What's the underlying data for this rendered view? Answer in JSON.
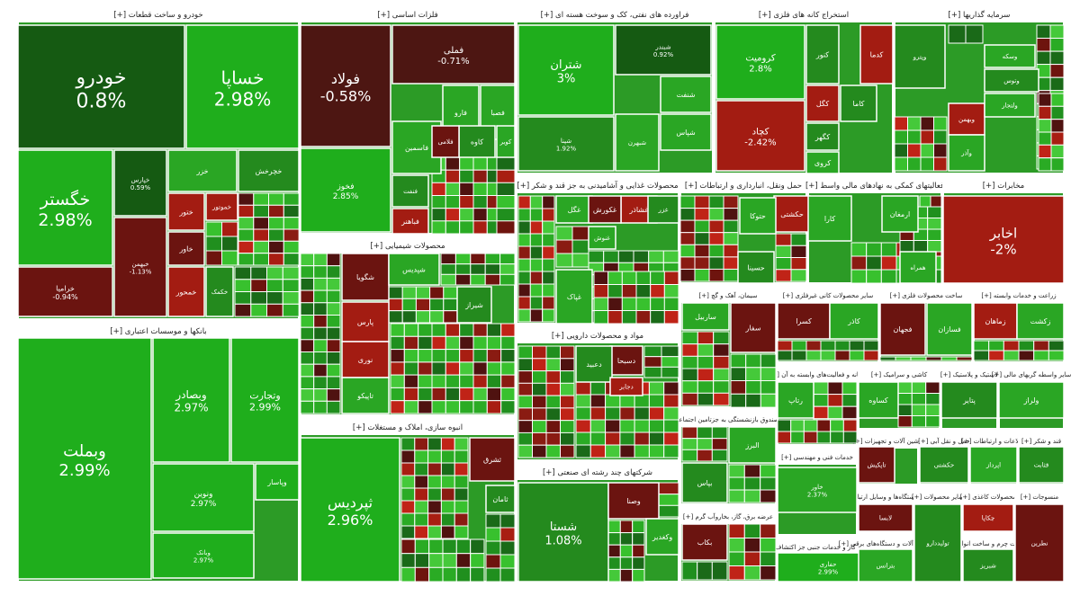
{
  "chart_data": {
    "type": "heatmap",
    "sectors": [
      {
        "name": "خودرو و ساخت قطعات [+]",
        "stocks": [
          {
            "name": "خودرو",
            "change": 0.8
          },
          {
            "name": "خساپا",
            "change": 2.98
          },
          {
            "name": "خگستر",
            "change": 2.98
          },
          {
            "name": "خرامیا",
            "change": -0.94
          },
          {
            "name": "خپارس",
            "change": 0.59
          },
          {
            "name": "خبهمن",
            "change": -1.13
          },
          {
            "name": "خمحور",
            "change": -1.5
          },
          {
            "name": "خاور",
            "change": -1.2
          },
          {
            "name": "ختور",
            "change": -2.0
          },
          {
            "name": "خموتور",
            "change": -1.5
          },
          {
            "name": "خکمک",
            "change": 1.4
          },
          {
            "name": "خزر",
            "change": 2.1
          },
          {
            "name": "خچرخش",
            "change": 1.9
          }
        ]
      },
      {
        "name": "فلزات اساسی [+]",
        "stocks": [
          {
            "name": "فولاد",
            "change": -0.58
          },
          {
            "name": "فملی",
            "change": -0.71
          },
          {
            "name": "فخوز",
            "change": 2.85
          },
          {
            "name": "فاسمين",
            "change": 2.3
          },
          {
            "name": "فارو",
            "change": 2.5
          },
          {
            "name": "فصبا",
            "change": 2.1
          },
          {
            "name": "کاوه",
            "change": 1.8
          },
          {
            "name": "فلامی",
            "change": -1.4
          },
          {
            "name": "کویر",
            "change": 2.0
          },
          {
            "name": "فنفت",
            "change": 1.6
          },
          {
            "name": "فباهنر",
            "change": -1.8
          }
        ]
      },
      {
        "name": "فراورده های نفتی، کک و سوخت هسته ای [+]",
        "stocks": [
          {
            "name": "شتران",
            "change": 3.0
          },
          {
            "name": "شبندر",
            "change": 0.92
          },
          {
            "name": "شپنا",
            "change": 1.92
          },
          {
            "name": "شنفت",
            "change": 2.6
          },
          {
            "name": "شپاس",
            "change": 2.4
          },
          {
            "name": "شبهرن",
            "change": 2.2
          }
        ]
      },
      {
        "name": "استخراج کانه های فلزی [+]",
        "stocks": [
          {
            "name": "کرومیت",
            "change": 2.8
          },
          {
            "name": "کچاد",
            "change": -2.42
          },
          {
            "name": "کگل",
            "change": -1.9
          },
          {
            "name": "کنور",
            "change": 1.5
          },
          {
            "name": "کگهر",
            "change": 1.4
          },
          {
            "name": "کروی",
            "change": 2.3
          },
          {
            "name": "کاما",
            "change": 1.9
          },
          {
            "name": "کدما",
            "change": -1.6
          }
        ]
      },
      {
        "name": "سرمایه گذاریها [+]",
        "stocks": [
          {
            "name": "وپترو",
            "change": 1.2
          },
          {
            "name": "وسکه",
            "change": 2.0
          },
          {
            "name": "وبهمن",
            "change": -1.6
          },
          {
            "name": "وتوس",
            "change": 1.8
          },
          {
            "name": "ولتجار",
            "change": 2.2
          },
          {
            "name": "وآذر",
            "change": 2.4
          }
        ]
      },
      {
        "name": "محصولات غذایی و آشامیدنی به جز قند و شکر [+]",
        "stocks": [
          {
            "name": "غگل",
            "change": 2.1
          },
          {
            "name": "غشاذر",
            "change": -1.8
          },
          {
            "name": "غکورش",
            "change": -1.3
          },
          {
            "name": "غزر",
            "change": 1.9
          },
          {
            "name": "غنوش",
            "change": 2.4
          },
          {
            "name": "غپاک",
            "change": 2.0
          }
        ]
      },
      {
        "name": "حمل ونقل، انبارداری و ارتباطات [+]",
        "stocks": [
          {
            "name": "حکشتی",
            "change": -1.5
          },
          {
            "name": "حتوکا",
            "change": 2.3
          },
          {
            "name": "حسینا",
            "change": 1.7
          }
        ]
      },
      {
        "name": "فعالیتهای کمکی به نهادهای مالی واسط [+]",
        "stocks": [
          {
            "name": "کارا",
            "change": 2.6
          },
          {
            "name": "ارمغان",
            "change": 2.2
          }
        ]
      },
      {
        "name": "مخابرات [+]",
        "stocks": [
          {
            "name": "اخابر",
            "change": -2.0
          },
          {
            "name": "همراه",
            "change": 2.4
          }
        ]
      },
      {
        "name": "بانکها و موسسات اعتباری [+]",
        "stocks": [
          {
            "name": "وبملت",
            "change": 2.99
          },
          {
            "name": "وبصادر",
            "change": 2.97
          },
          {
            "name": "وتجارت",
            "change": 2.99
          },
          {
            "name": "ونوین",
            "change": 2.97
          },
          {
            "name": "وپاسار",
            "change": 2.96
          },
          {
            "name": "وبانک",
            "change": 2.97
          }
        ]
      },
      {
        "name": "محصولات شیمیایی [+]",
        "stocks": [
          {
            "name": "شگویا",
            "change": -1.2
          },
          {
            "name": "شپدیس",
            "change": 2.5
          },
          {
            "name": "شیراز",
            "change": 1.8
          },
          {
            "name": "پارس",
            "change": -1.5
          },
          {
            "name": "نوری",
            "change": -1.7
          },
          {
            "name": "تاپیکو",
            "change": 2.1
          }
        ]
      },
      {
        "name": "انبوه سازی، املاک و مستغلات [+]",
        "stocks": [
          {
            "name": "ثپردیس",
            "change": 2.96
          },
          {
            "name": "ثشرق",
            "change": -1.4
          },
          {
            "name": "ثامان",
            "change": 1.6
          }
        ]
      },
      {
        "name": "مواد و محصولات دارویی [+]",
        "stocks": [
          {
            "name": "دسبحا",
            "change": -1.1
          },
          {
            "name": "دعبید",
            "change": 1.9
          },
          {
            "name": "دجابر",
            "change": -1.6
          }
        ]
      },
      {
        "name": "شرکتهای چند رشته ای صنعتی [+]",
        "stocks": [
          {
            "name": "شستا",
            "change": 1.08
          },
          {
            "name": "وصنا",
            "change": -1.3
          },
          {
            "name": "وکغدیر",
            "change": 2.0
          }
        ]
      },
      {
        "name": "سیمان، آهک و گچ [+]",
        "stocks": [
          {
            "name": "ساربیل",
            "change": 2.2
          },
          {
            "name": "سفار",
            "change": -1.2
          }
        ]
      },
      {
        "name": "سایر محصولات کانی غیرفلزی [+]",
        "stocks": [
          {
            "name": "کسرا",
            "change": -1.4
          },
          {
            "name": "کاذر",
            "change": 2.1
          }
        ]
      },
      {
        "name": "ساخت محصولات فلزی [+]",
        "stocks": [
          {
            "name": "فجهان",
            "change": -1.3
          },
          {
            "name": "فسازان",
            "change": 2.0
          }
        ]
      },
      {
        "name": "زراعت و خدمات وابسته [+]",
        "stocks": [
          {
            "name": "زماهان",
            "change": -1.5
          },
          {
            "name": "زکشت",
            "change": 2.3
          }
        ]
      },
      {
        "name": "بیمه وصندوق بازنشستگی به جزتامین اجتماعی [+]",
        "stocks": [
          {
            "name": "البرز",
            "change": 2.4
          },
          {
            "name": "بپاس",
            "change": 1.8
          }
        ]
      },
      {
        "name": "عرضه برق، گاز، بخاروآب گرم [+]",
        "stocks": [
          {
            "name": "بکاب",
            "change": -1.3
          }
        ]
      },
      {
        "name": "استخراج نفت گاز و خدمات جنبی جز اکتشاف [+]",
        "stocks": [
          {
            "name": "حفاری",
            "change": 2.99
          }
        ]
      },
      {
        "name": "رایانه و فعالیت‌های وابسته به آن [+]",
        "stocks": [
          {
            "name": "رتاپ",
            "change": 2.1
          }
        ]
      },
      {
        "name": "کاشی و سرامیک [+]",
        "stocks": [
          {
            "name": "کساوه",
            "change": 2.2
          }
        ]
      },
      {
        "name": "لاستیک و پلاستیک [+]",
        "stocks": [
          {
            "name": "پتایر",
            "change": 1.9
          }
        ]
      },
      {
        "name": "سایر واسطه گریهای مالی [+]",
        "stocks": [
          {
            "name": "ولراز",
            "change": 2.0
          }
        ]
      },
      {
        "name": "خدمات فنی و مهندسی [+]",
        "stocks": [
          {
            "name": "خاور",
            "change": 2.37
          }
        ]
      },
      {
        "name": "ماشین آلات و تجهیزات [+]",
        "stocks": [
          {
            "name": "تاپکیش",
            "change": -1.4
          }
        ]
      },
      {
        "name": "حمل و نقل آبی [+]",
        "stocks": [
          {
            "name": "حکشتی",
            "change": 1.8
          }
        ]
      },
      {
        "name": "اطلاعات و ارتباطات [+]",
        "stocks": [
          {
            "name": "اپرداز",
            "change": 2.0
          }
        ]
      },
      {
        "name": "قند و شکر [+]",
        "stocks": [
          {
            "name": "قثابت",
            "change": 1.9
          }
        ]
      },
      {
        "name": "ساخت دستگاه‌ها و وسایل ارتباطی [+]",
        "stocks": [
          {
            "name": "لابسا",
            "change": -1.2
          }
        ]
      },
      {
        "name": "ماشین آلات و دستگاه‌های برقی [+]",
        "stocks": [
          {
            "name": "بترانس",
            "change": 2.1
          }
        ]
      },
      {
        "name": "سایر محصولات [+]",
        "stocks": [
          {
            "name": "تولیددارو",
            "change": 1.7
          }
        ]
      },
      {
        "name": "محصولات کاغذی [+]",
        "stocks": [
          {
            "name": "چکاپا",
            "change": -1.8
          }
        ]
      },
      {
        "name": "دباغی، پرداخت چرم و ساخت انواع پاپوش [+]",
        "stocks": [
          {
            "name": "شبریز",
            "change": 1.6
          }
        ]
      },
      {
        "name": "منسوجات [+]",
        "stocks": [
          {
            "name": "نطرین",
            "change": -1.4
          }
        ]
      }
    ]
  }
}
